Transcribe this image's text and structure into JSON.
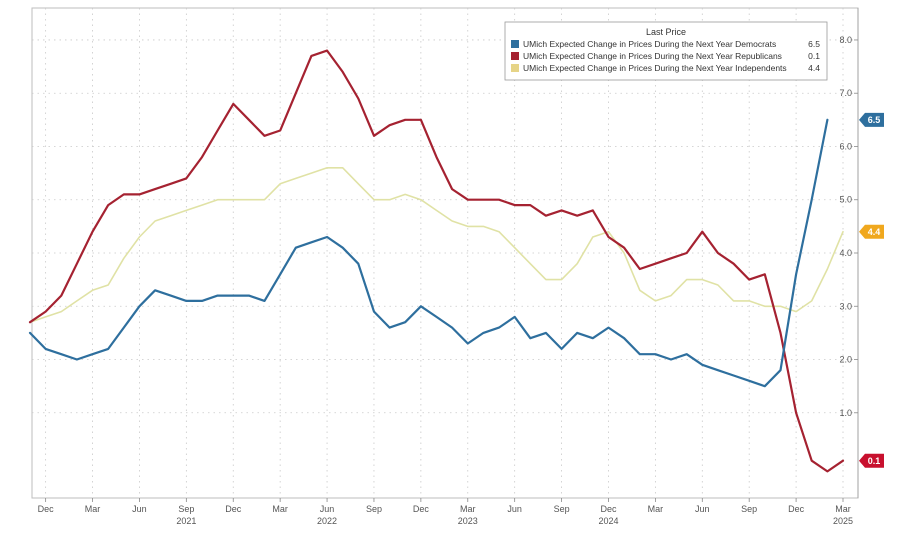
{
  "chart_data": {
    "type": "line",
    "title": "",
    "xlabel": "",
    "ylabel": "",
    "ylim": [
      -0.6,
      8.6
    ],
    "y_ticks": [
      "1.0",
      "2.0",
      "3.0",
      "4.0",
      "5.0",
      "6.0",
      "7.0",
      "8.0"
    ],
    "x_ticks": [
      "Dec",
      "Mar",
      "Jun",
      "Sep",
      "Dec",
      "Mar",
      "Jun",
      "Sep",
      "Dec",
      "Mar",
      "Jun",
      "Sep",
      "Dec",
      "Mar",
      "Jun",
      "Sep",
      "Dec",
      "Mar"
    ],
    "year_labels": [
      "2021",
      "2022",
      "2023",
      "2024",
      "2025"
    ],
    "grid": true,
    "legend_position": "top-right",
    "legend_title": "Last Price",
    "x_start": "Nov 2020",
    "x_end": "Mar 2025",
    "series": [
      {
        "name": "UMich Expected Change in Prices During the Next Year Democrats",
        "last_value": "6.5",
        "color": "#2e6f9e",
        "values": [
          2.5,
          2.2,
          2.1,
          2.0,
          2.1,
          2.2,
          2.6,
          3.0,
          3.3,
          3.2,
          3.1,
          3.1,
          3.2,
          3.2,
          3.2,
          3.1,
          3.6,
          4.1,
          4.2,
          4.3,
          4.1,
          3.8,
          2.9,
          2.6,
          2.7,
          3.0,
          2.8,
          2.6,
          2.3,
          2.5,
          2.6,
          2.8,
          2.4,
          2.5,
          2.2,
          2.5,
          2.4,
          2.6,
          2.4,
          2.1,
          2.1,
          2.0,
          2.1,
          1.9,
          1.8,
          1.7,
          1.6,
          1.5,
          1.8,
          3.6,
          5.0,
          6.5
        ]
      },
      {
        "name": "UMich Expected Change in Prices During the Next Year Republicans",
        "last_value": "0.1",
        "color": "#a52231",
        "values": [
          2.7,
          2.9,
          3.2,
          3.8,
          4.4,
          4.9,
          5.1,
          5.1,
          5.2,
          5.3,
          5.4,
          5.8,
          6.3,
          6.8,
          6.5,
          6.2,
          6.3,
          7.0,
          7.7,
          7.8,
          7.4,
          6.9,
          6.2,
          6.4,
          6.5,
          6.5,
          5.8,
          5.2,
          5.0,
          5.0,
          5.0,
          4.9,
          4.9,
          4.7,
          4.8,
          4.7,
          4.8,
          4.3,
          4.1,
          3.7,
          3.8,
          3.9,
          4.0,
          4.4,
          4.0,
          3.8,
          3.5,
          3.6,
          2.5,
          1.0,
          0.1,
          -0.1,
          0.1
        ]
      },
      {
        "name": "UMich Expected Change in Prices During the Next Year Independents",
        "last_value": "4.4",
        "color": "#e0e2a5",
        "values": [
          2.7,
          2.8,
          2.9,
          3.1,
          3.3,
          3.4,
          3.9,
          4.3,
          4.6,
          4.7,
          4.8,
          4.9,
          5.0,
          5.0,
          5.0,
          5.0,
          5.3,
          5.4,
          5.5,
          5.6,
          5.6,
          5.3,
          5.0,
          5.0,
          5.1,
          5.0,
          4.8,
          4.6,
          4.5,
          4.5,
          4.4,
          4.1,
          3.8,
          3.5,
          3.5,
          3.8,
          4.3,
          4.4,
          4.0,
          3.3,
          3.1,
          3.2,
          3.5,
          3.5,
          3.4,
          3.1,
          3.1,
          3.0,
          3.0,
          2.9,
          3.1,
          3.7,
          4.4
        ]
      }
    ],
    "value_tags": [
      {
        "label": "6.5",
        "value": 6.5,
        "color": "#2e6f9e"
      },
      {
        "label": "4.4",
        "value": 4.4,
        "color": "#f0a81e"
      },
      {
        "label": "0.1",
        "value": 0.1,
        "color": "#c8102e"
      }
    ]
  }
}
